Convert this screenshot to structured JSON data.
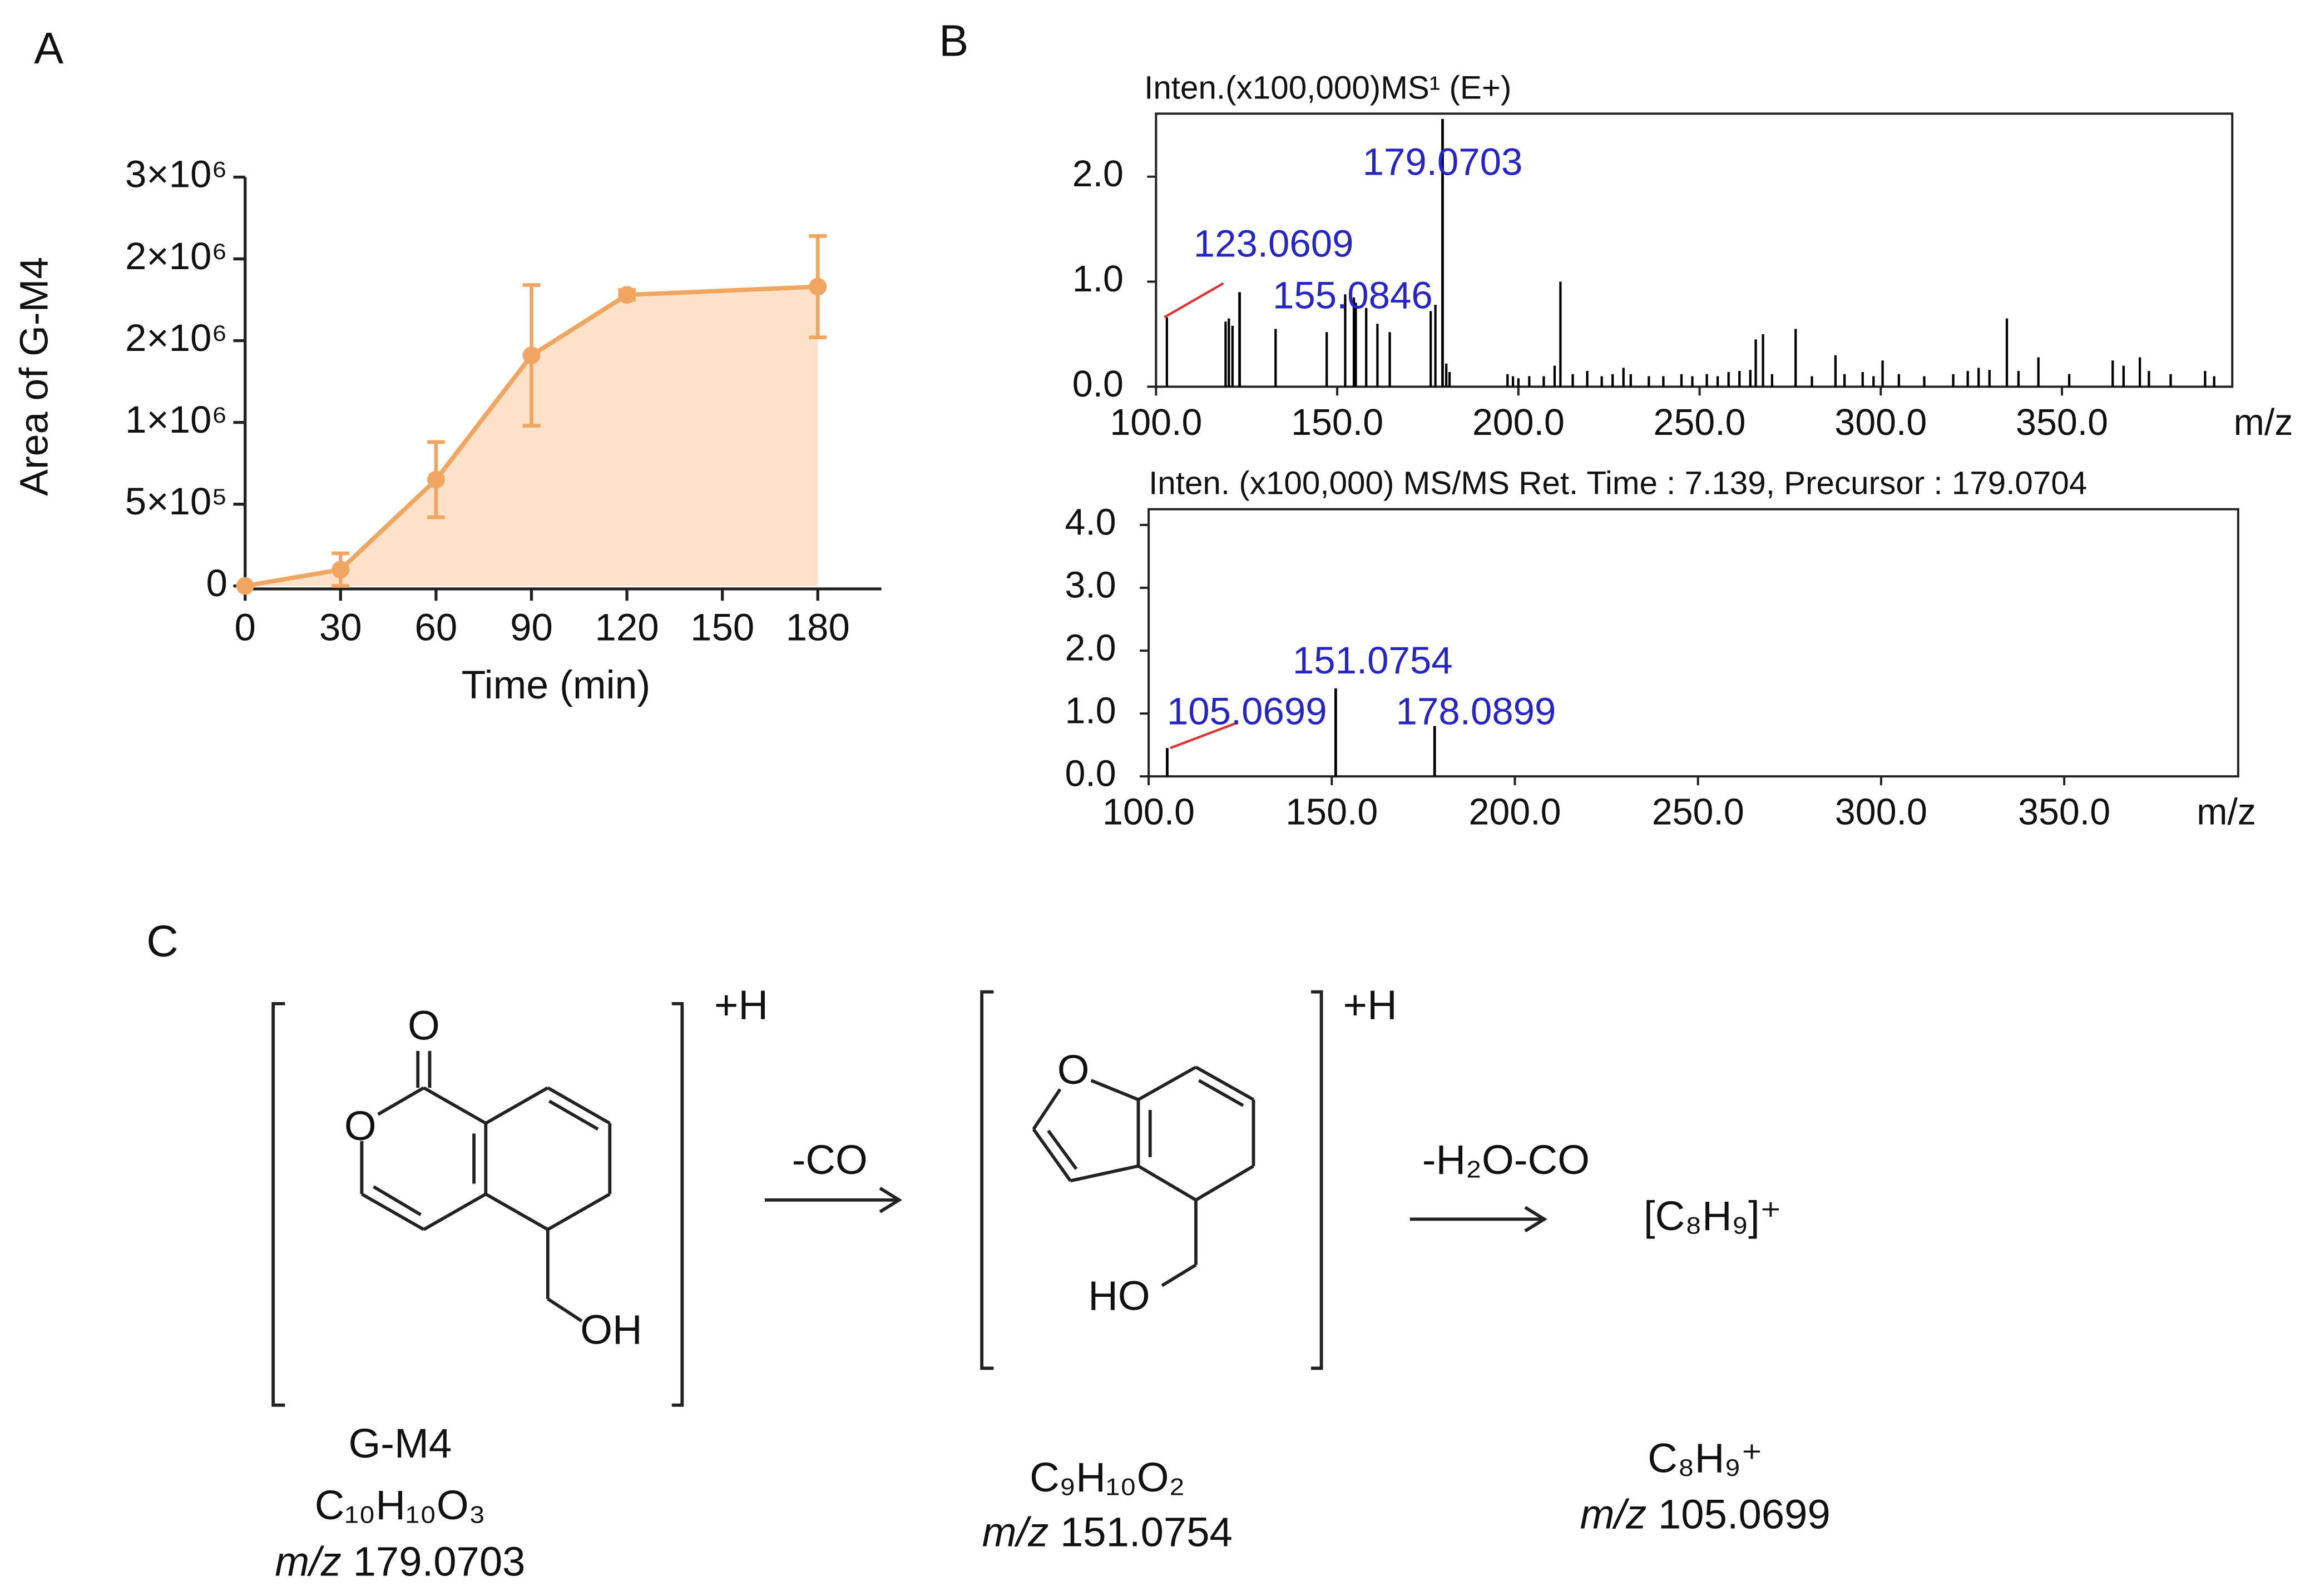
{
  "panel_labels": [
    "A",
    "B",
    "C"
  ],
  "chart_data": [
    {
      "type": "line",
      "x_label": "Time (min)",
      "y_label": "Area of G-M4",
      "x": [
        0,
        30,
        60,
        90,
        120,
        180
      ],
      "series": [
        {
          "color": "#f0a660",
          "fill_color": "#fde2c9",
          "values": [
            0,
            100000,
            650000,
            1410000,
            1780000,
            1830000
          ],
          "errors": [
            0,
            100000,
            230000,
            430000,
            30000,
            310000
          ]
        }
      ],
      "area_fill": true,
      "xlim": [
        0,
        200
      ],
      "xticks": [
        0,
        30,
        60,
        90,
        120,
        150,
        180
      ],
      "ylim": [
        0,
        2500000
      ],
      "yticks": [
        0,
        {
          "value": 500000,
          "label": "5×10⁵"
        },
        {
          "value": 1000000,
          "label": "1×10⁶"
        },
        {
          "value": 1500000,
          "label": "2×10⁶"
        },
        {
          "value": 2000000,
          "label": "2×10⁶"
        },
        {
          "value": 2500000,
          "label": "3×10⁶"
        }
      ]
    },
    {
      "type": "spectrum",
      "title": "Inten.(x100,000)MS¹ (E+)",
      "x_label": "m/z",
      "color": "#000000",
      "label_color": "#2424c8",
      "leader_color": "#e03030",
      "x": [
        103.0,
        119.2,
        120.1,
        121.1,
        133.0,
        147.1,
        152.2,
        154.6,
        158.0,
        161.1,
        164.5,
        175.8,
        177.1,
        180.1,
        181.0,
        197,
        198.5,
        200,
        203,
        207,
        210,
        211.6,
        215,
        219,
        223,
        226,
        229,
        231,
        236,
        240,
        245,
        248,
        252,
        255,
        258,
        261,
        264,
        265.5,
        267.5,
        270,
        276.5,
        281,
        287.5,
        290,
        295,
        298,
        300.5,
        305,
        312,
        320,
        324,
        327,
        330,
        334.8,
        338,
        343.5,
        352,
        364,
        367,
        371.5,
        374,
        380,
        389.5,
        392
      ],
      "values": [
        0.66,
        0.62,
        0.65,
        0.58,
        0.55,
        0.52,
        0.88,
        0.85,
        0.75,
        0.6,
        0.52,
        0.72,
        0.78,
        0.22,
        0.14,
        0.12,
        0.1,
        0.08,
        0.1,
        0.1,
        0.2,
        1.0,
        0.12,
        0.15,
        0.1,
        0.12,
        0.18,
        0.12,
        0.1,
        0.1,
        0.12,
        0.1,
        0.12,
        0.1,
        0.14,
        0.15,
        0.16,
        0.45,
        0.5,
        0.12,
        0.55,
        0.1,
        0.3,
        0.12,
        0.14,
        0.1,
        0.25,
        0.12,
        0.1,
        0.12,
        0.15,
        0.18,
        0.16,
        0.65,
        0.15,
        0.28,
        0.12,
        0.25,
        0.2,
        0.28,
        0.15,
        0.12,
        0.15,
        0.1
      ],
      "annotated": {
        "x": [
          123.0609,
          155.0846,
          179.0703
        ],
        "values": [
          0.9,
          0.8,
          2.55
        ]
      },
      "xlim": [
        100,
        397
      ],
      "xticks": [
        {
          "value": 100,
          "label": "100.0"
        },
        {
          "value": 150,
          "label": "150.0"
        },
        {
          "value": 200,
          "label": "200.0"
        },
        {
          "value": 250,
          "label": "250.0"
        },
        {
          "value": 300,
          "label": "300.0"
        },
        {
          "value": 350,
          "label": "350.0"
        }
      ],
      "ylim": [
        0,
        2.6
      ],
      "yticks": [
        {
          "value": 0,
          "label": "0.0"
        },
        {
          "value": 1,
          "label": "1.0"
        },
        {
          "value": 2,
          "label": "2.0"
        }
      ]
    },
    {
      "type": "spectrum",
      "title": "Inten. (x100,000) MS/MS Ret. Time : 7.139, Precursor : 179.0704",
      "x_label": "m/z",
      "color": "#000000",
      "label_color": "#2424c8",
      "leader_color": "#e03030",
      "annotated": {
        "x": [
          105.0699,
          151.0754,
          178.0899
        ],
        "values": [
          0.45,
          1.4,
          0.8
        ]
      },
      "xlim": [
        100,
        397.5
      ],
      "xticks": [
        {
          "value": 100,
          "label": "100.0"
        },
        {
          "value": 150,
          "label": "150.0"
        },
        {
          "value": 200,
          "label": "200.0"
        },
        {
          "value": 250,
          "label": "250.0"
        },
        {
          "value": 300,
          "label": "300.0"
        },
        {
          "value": 350,
          "label": "350.0"
        }
      ],
      "ylim": [
        0,
        4.25
      ],
      "yticks": [
        {
          "value": 0,
          "label": "0.0"
        },
        {
          "value": 1,
          "label": "1.0"
        },
        {
          "value": 2,
          "label": "2.0"
        },
        {
          "value": 3,
          "label": "3.0"
        },
        {
          "value": 4,
          "label": "4.0"
        }
      ]
    }
  ],
  "scheme": {
    "compounds": [
      {
        "charge": "+H",
        "atoms": [
          "O",
          "O",
          "OH"
        ],
        "name": "G-M4",
        "formula": "C₁₀H₁₀O₃",
        "mz_prefix": "m/z",
        "mz": "179.0703"
      },
      {
        "charge": "+H",
        "atoms": [
          "O",
          "HO"
        ],
        "formula": "C₉H₁₀O₂",
        "mz_prefix": "m/z",
        "mz": "151.0754"
      },
      {
        "ion": "[C₈H₉]⁺",
        "formula": "C₈H₉⁺",
        "mz_prefix": "m/z",
        "mz": "105.0699"
      }
    ],
    "steps": [
      "-CO",
      "-H₂O-CO"
    ]
  }
}
